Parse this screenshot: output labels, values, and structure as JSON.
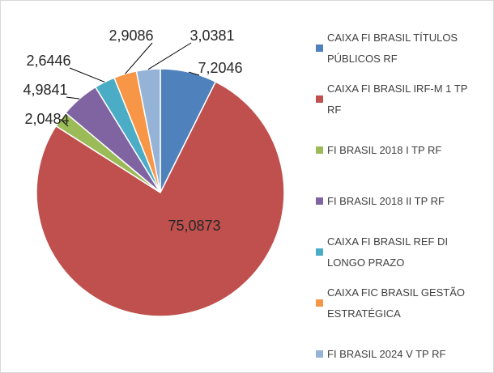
{
  "chart_data": {
    "type": "pie",
    "categories": [
      "CAIXA FI BRASIL TÍTULOS PÚBLICOS RF",
      "CAIXA FI BRASIL IRF-M 1 TP RF",
      "FI BRASIL 2018 I TP RF",
      "FI BRASIL 2018 II TP RF",
      "CAIXA FI BRASIL REF DI LONGO PRAZO",
      "CAIXA FIC BRASIL GESTÃO ESTRATÉGICA",
      "FI BRASIL 2024 V TP RF"
    ],
    "values": [
      7.2046,
      75.0873,
      2.0484,
      4.9841,
      2.6446,
      2.9086,
      3.0381
    ],
    "value_labels": [
      "7,2046",
      "75,0873",
      "2,0484",
      "4,9841",
      "2,6446",
      "2,9086",
      "3,0381"
    ],
    "colors": [
      "#4f81bd",
      "#c0504d",
      "#9bbb59",
      "#8064a2",
      "#4bacc6",
      "#f79646",
      "#95b3d7"
    ],
    "legend": "right"
  }
}
